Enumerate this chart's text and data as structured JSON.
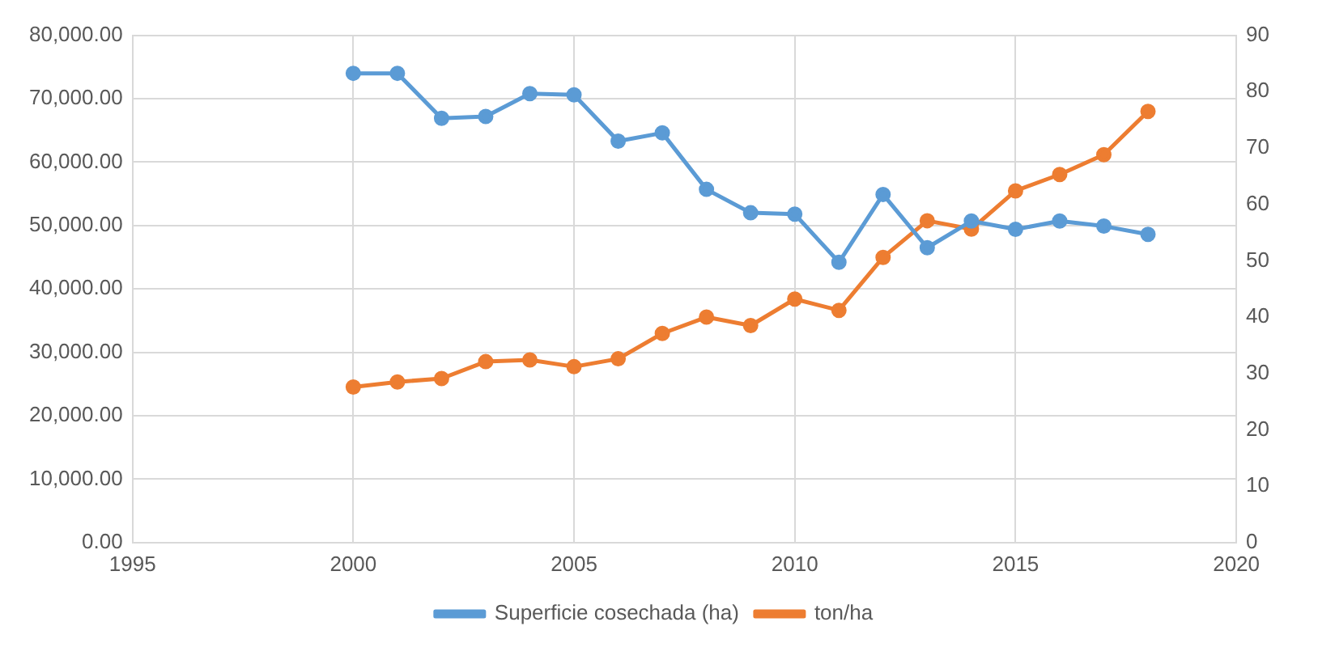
{
  "chart_data": {
    "type": "line",
    "x": [
      2000,
      2001,
      2002,
      2003,
      2004,
      2005,
      2006,
      2007,
      2008,
      2009,
      2010,
      2011,
      2012,
      2013,
      2014,
      2015,
      2016,
      2017,
      2018
    ],
    "series": [
      {
        "name": "Superficie cosechada (ha)",
        "color": "#5b9bd5",
        "values": [
          74000,
          74000,
          66900,
          67200,
          70800,
          70600,
          63300,
          64600,
          55700,
          52000,
          51800,
          44200,
          54900,
          46500,
          50700,
          49400,
          50700,
          49900,
          48600
        ]
      },
      {
        "name": "ton/ha",
        "color": "#ed7d31",
        "axis": "y2",
        "values": [
          27.6,
          28.5,
          29.1,
          32.1,
          32.4,
          31.2,
          32.6,
          37.1,
          40.0,
          38.5,
          43.2,
          41.2,
          50.6,
          57.1,
          55.6,
          62.4,
          65.3,
          68.8,
          76.5
        ]
      }
    ],
    "xlim": [
      1995,
      2020
    ],
    "xticks": [
      1995,
      2000,
      2005,
      2010,
      2015,
      2020
    ],
    "ylim": [
      0,
      80000
    ],
    "yticks": [
      {
        "value": 0,
        "label": "0.00"
      },
      {
        "value": 10000,
        "label": "10,000.00"
      },
      {
        "value": 20000,
        "label": "20,000.00"
      },
      {
        "value": 30000,
        "label": "30,000.00"
      },
      {
        "value": 40000,
        "label": "40,000.00"
      },
      {
        "value": 50000,
        "label": "50,000.00"
      },
      {
        "value": 60000,
        "label": "60,000.00"
      },
      {
        "value": 70000,
        "label": "70,000.00"
      },
      {
        "value": 80000,
        "label": "80,000.00"
      }
    ],
    "y2lim": [
      0,
      90
    ],
    "y2ticks": [
      0,
      10,
      20,
      30,
      40,
      50,
      60,
      70,
      80,
      90
    ],
    "grid": true,
    "legend": "bottom",
    "marker": "circle",
    "line_style": "solid"
  }
}
